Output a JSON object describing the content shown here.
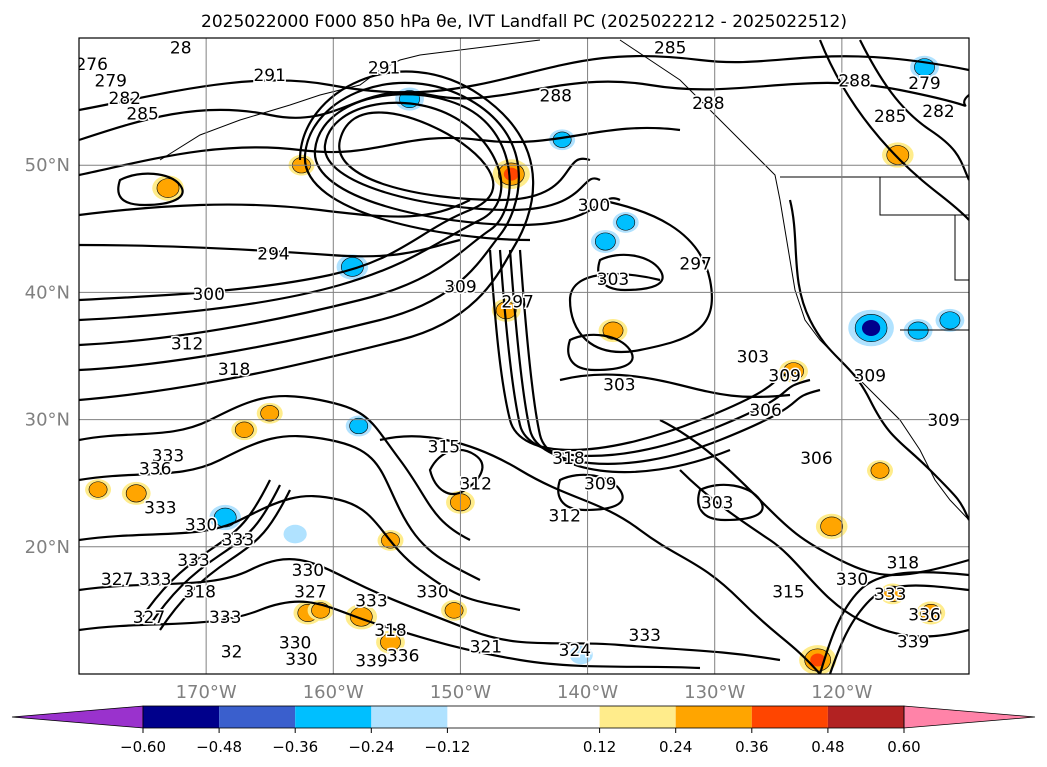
{
  "chart_data": {
    "type": "heatmap",
    "title": "2025022000 F000 850 hPa θe, IVT Landfall PC (2025022212 - 2025022512)",
    "grid": true,
    "x_axis": {
      "ticks": [
        {
          "value": -170,
          "label": "170°W"
        },
        {
          "value": -160,
          "label": "160°W"
        },
        {
          "value": -150,
          "label": "150°W"
        },
        {
          "value": -140,
          "label": "140°W"
        },
        {
          "value": -130,
          "label": "130°W"
        },
        {
          "value": -120,
          "label": "120°W"
        }
      ]
    },
    "y_axis": {
      "ticks": [
        {
          "value": 20,
          "label": "20°N"
        },
        {
          "value": 30,
          "label": "30°N"
        },
        {
          "value": 40,
          "label": "40°N"
        },
        {
          "value": 50,
          "label": "50°N"
        }
      ]
    },
    "colorbar": {
      "levels": [
        -0.72,
        -0.6,
        -0.48,
        -0.36,
        -0.24,
        -0.12,
        0.12,
        0.24,
        0.36,
        0.48,
        0.6,
        0.72
      ],
      "tick_values": [
        -0.6,
        -0.48,
        -0.36,
        -0.24,
        -0.12,
        0.12,
        0.24,
        0.36,
        0.48,
        0.6
      ],
      "tick_labels": [
        "−0.60",
        "−0.48",
        "−0.36",
        "−0.24",
        "−0.12",
        "0.12",
        "0.24",
        "0.36",
        "0.48",
        "0.60"
      ],
      "colors": [
        "#9a32cd",
        "#00008b",
        "#3a5fcd",
        "#00bfff",
        "#b0e2ff",
        "#ffffff",
        "#ffec8b",
        "#ffa500",
        "#ff4500",
        "#b22222",
        "#ff83a8",
        "#ff83a8"
      ],
      "extend": "both"
    },
    "contour_labels": [
      {
        "text": "291",
        "lon": -165.0,
        "lat": 56.6
      },
      {
        "text": "291",
        "lon": -156.0,
        "lat": 57.2
      },
      {
        "text": "285",
        "lon": -133.5,
        "lat": 58.8
      },
      {
        "text": "288",
        "lon": -142.5,
        "lat": 55.0
      },
      {
        "text": "288",
        "lon": -130.5,
        "lat": 54.4
      },
      {
        "text": "288",
        "lon": -119.0,
        "lat": 56.2
      },
      {
        "text": "285",
        "lon": -116.2,
        "lat": 53.4
      },
      {
        "text": "282",
        "lon": -112.4,
        "lat": 53.8
      },
      {
        "text": "279",
        "lon": -113.5,
        "lat": 56.0
      },
      {
        "text": "276",
        "lon": -179.0,
        "lat": 57.5
      },
      {
        "text": "279",
        "lon": -177.5,
        "lat": 56.2
      },
      {
        "text": "282",
        "lon": -176.4,
        "lat": 54.8
      },
      {
        "text": "285",
        "lon": -175.0,
        "lat": 53.6
      },
      {
        "text": "294",
        "lon": -164.7,
        "lat": 42.6
      },
      {
        "text": "300",
        "lon": -169.8,
        "lat": 39.4
      },
      {
        "text": "300",
        "lon": -139.5,
        "lat": 46.4
      },
      {
        "text": "297",
        "lon": -145.5,
        "lat": 38.8
      },
      {
        "text": "309",
        "lon": -150.0,
        "lat": 40.0
      },
      {
        "text": "303",
        "lon": -138.0,
        "lat": 40.6
      },
      {
        "text": "297",
        "lon": -131.5,
        "lat": 41.8
      },
      {
        "text": "303",
        "lon": -137.5,
        "lat": 32.3
      },
      {
        "text": "312",
        "lon": -171.5,
        "lat": 35.5
      },
      {
        "text": "318",
        "lon": -167.8,
        "lat": 33.5
      },
      {
        "text": "303",
        "lon": -127.0,
        "lat": 34.5
      },
      {
        "text": "309",
        "lon": -124.5,
        "lat": 33.0
      },
      {
        "text": "309",
        "lon": -117.8,
        "lat": 33.0
      },
      {
        "text": "306",
        "lon": -126.0,
        "lat": 30.3
      },
      {
        "text": "306",
        "lon": -122.0,
        "lat": 26.5
      },
      {
        "text": "309",
        "lon": -112.0,
        "lat": 29.5
      },
      {
        "text": "315",
        "lon": -151.3,
        "lat": 27.4
      },
      {
        "text": "318",
        "lon": -141.5,
        "lat": 26.5
      },
      {
        "text": "312",
        "lon": -148.8,
        "lat": 24.5
      },
      {
        "text": "309",
        "lon": -139.0,
        "lat": 24.5
      },
      {
        "text": "303",
        "lon": -129.8,
        "lat": 23.0
      },
      {
        "text": "312",
        "lon": -141.8,
        "lat": 22.0
      },
      {
        "text": "318",
        "lon": -115.2,
        "lat": 18.3
      },
      {
        "text": "330",
        "lon": -119.2,
        "lat": 17.0
      },
      {
        "text": "333",
        "lon": -116.2,
        "lat": 15.8
      },
      {
        "text": "336",
        "lon": -113.5,
        "lat": 14.2
      },
      {
        "text": "339",
        "lon": -114.4,
        "lat": 12.1
      },
      {
        "text": "315",
        "lon": -124.2,
        "lat": 16.0
      },
      {
        "text": "333",
        "lon": -135.5,
        "lat": 12.6
      },
      {
        "text": "324",
        "lon": -141.0,
        "lat": 11.4
      },
      {
        "text": "321",
        "lon": -148.0,
        "lat": 11.7
      },
      {
        "text": "330",
        "lon": -152.2,
        "lat": 16.0
      },
      {
        "text": "333",
        "lon": -157.0,
        "lat": 15.3
      },
      {
        "text": "318",
        "lon": -155.5,
        "lat": 13.0
      },
      {
        "text": "339",
        "lon": -157.0,
        "lat": 10.6
      },
      {
        "text": "336",
        "lon": -154.5,
        "lat": 11.0
      },
      {
        "text": "330",
        "lon": -163.0,
        "lat": 12.0
      },
      {
        "text": "330",
        "lon": -162.5,
        "lat": 10.7
      },
      {
        "text": "327",
        "lon": -161.8,
        "lat": 16.0
      },
      {
        "text": "330",
        "lon": -162.0,
        "lat": 17.7
      },
      {
        "text": "333",
        "lon": -167.5,
        "lat": 20.1
      },
      {
        "text": "330",
        "lon": -170.4,
        "lat": 21.3
      },
      {
        "text": "333",
        "lon": -173.6,
        "lat": 22.6
      },
      {
        "text": "333",
        "lon": -173.0,
        "lat": 26.7
      },
      {
        "text": "336",
        "lon": -174.0,
        "lat": 25.7
      },
      {
        "text": "333",
        "lon": -171.0,
        "lat": 18.5
      },
      {
        "text": "333",
        "lon": -174.0,
        "lat": 17.0
      },
      {
        "text": "327",
        "lon": -177.0,
        "lat": 17.0
      },
      {
        "text": "318",
        "lon": -170.5,
        "lat": 16.0
      },
      {
        "text": "333",
        "lon": -168.5,
        "lat": 14.0
      },
      {
        "text": "327",
        "lon": -174.5,
        "lat": 14.0
      },
      {
        "text": "32",
        "lon": -168.0,
        "lat": 11.3
      },
      {
        "text": "28",
        "lon": -172.0,
        "lat": 58.8
      }
    ],
    "positive_patches": [
      {
        "lon": -146.0,
        "lat": 49.3,
        "value": 0.45
      },
      {
        "lon": -173.0,
        "lat": 48.2,
        "value": 0.35
      },
      {
        "lon": -146.4,
        "lat": 38.6,
        "value": 0.3
      },
      {
        "lon": -138.0,
        "lat": 37.0,
        "value": 0.3
      },
      {
        "lon": -162.5,
        "lat": 50.0,
        "value": 0.25
      },
      {
        "lon": -120.8,
        "lat": 21.6,
        "value": 0.35
      },
      {
        "lon": -115.6,
        "lat": 50.8,
        "value": 0.35
      },
      {
        "lon": -121.9,
        "lat": 11.1,
        "value": 0.45
      },
      {
        "lon": -113.0,
        "lat": 14.8,
        "value": 0.3
      },
      {
        "lon": -116.0,
        "lat": 16.3,
        "value": 0.25
      },
      {
        "lon": -162.0,
        "lat": 14.8,
        "value": 0.3
      },
      {
        "lon": -157.8,
        "lat": 14.5,
        "value": 0.35
      },
      {
        "lon": -155.5,
        "lat": 12.5,
        "value": 0.3
      },
      {
        "lon": -150.5,
        "lat": 15.0,
        "value": 0.25
      },
      {
        "lon": -175.5,
        "lat": 24.2,
        "value": 0.3
      },
      {
        "lon": -178.5,
        "lat": 24.5,
        "value": 0.25
      },
      {
        "lon": -167.0,
        "lat": 29.2,
        "value": 0.25
      },
      {
        "lon": -165.0,
        "lat": 30.5,
        "value": 0.25
      },
      {
        "lon": -150.0,
        "lat": 23.5,
        "value": 0.3
      },
      {
        "lon": -155.5,
        "lat": 20.5,
        "value": 0.25
      },
      {
        "lon": -123.8,
        "lat": 33.8,
        "value": 0.3
      },
      {
        "lon": -117.0,
        "lat": 26.0,
        "value": 0.25
      },
      {
        "lon": -161.0,
        "lat": 15.0,
        "value": 0.25
      }
    ],
    "negative_patches": [
      {
        "lon": -154.0,
        "lat": 55.2,
        "value": -0.3
      },
      {
        "lon": -142.0,
        "lat": 52.0,
        "value": -0.25
      },
      {
        "lon": -138.6,
        "lat": 44.0,
        "value": -0.3
      },
      {
        "lon": -137.0,
        "lat": 45.5,
        "value": -0.25
      },
      {
        "lon": -158.5,
        "lat": 42.0,
        "value": -0.35
      },
      {
        "lon": -117.7,
        "lat": 37.2,
        "value": -0.6
      },
      {
        "lon": -114.0,
        "lat": 37.0,
        "value": -0.3
      },
      {
        "lon": -111.5,
        "lat": 37.8,
        "value": -0.3
      },
      {
        "lon": -113.5,
        "lat": 57.7,
        "value": -0.3
      },
      {
        "lon": -168.5,
        "lat": 22.3,
        "value": -0.35
      },
      {
        "lon": -158.0,
        "lat": 29.5,
        "value": -0.25
      },
      {
        "lon": -140.5,
        "lat": 11.5,
        "value": -0.2
      },
      {
        "lon": -163.0,
        "lat": 21.0,
        "value": -0.2
      }
    ]
  }
}
